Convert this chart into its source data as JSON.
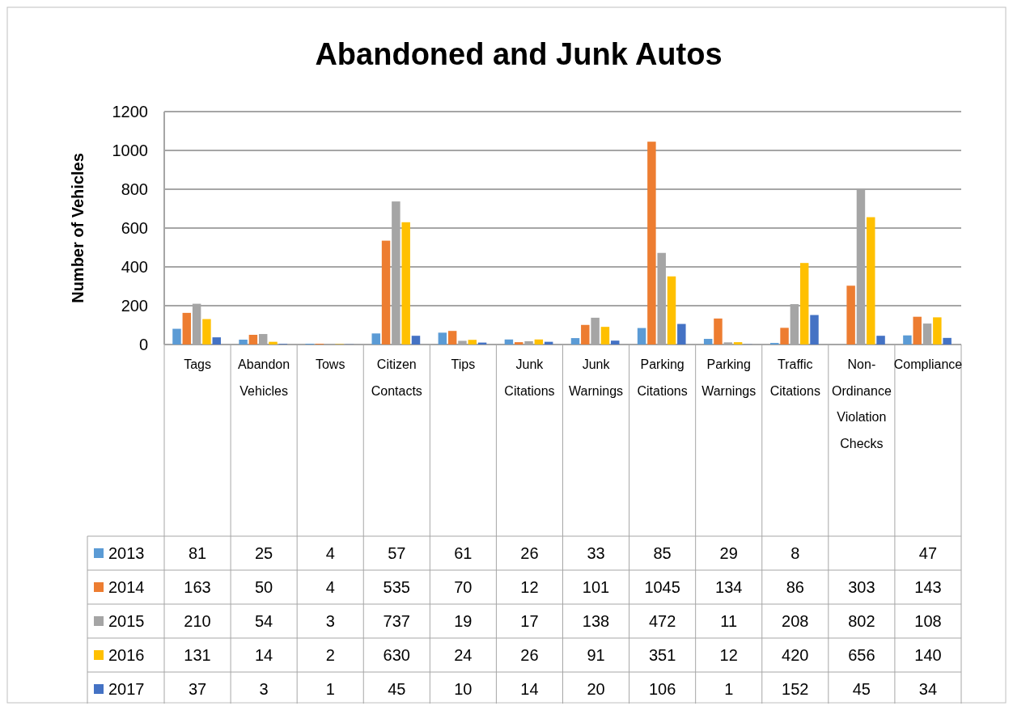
{
  "chart_data": {
    "type": "bar",
    "title": "Abandoned and Junk Autos",
    "ylabel": "Number of Vehicles",
    "categories": [
      "Tags",
      "Abandon Vehicles",
      "Tows",
      "Citizen Contacts",
      "Tips",
      "Junk Citations",
      "Junk Warnings",
      "Parking Citations",
      "Parking Warnings",
      "Traffic Citations",
      "Non-Ordinance Violation Checks",
      "Compliance"
    ],
    "series": [
      {
        "name": "2013",
        "color": "#5b9bd5",
        "values": [
          81,
          25,
          4,
          57,
          61,
          26,
          33,
          85,
          29,
          8,
          null,
          47
        ]
      },
      {
        "name": "2014",
        "color": "#ed7d31",
        "values": [
          163,
          50,
          4,
          535,
          70,
          12,
          101,
          1045,
          134,
          86,
          303,
          143
        ]
      },
      {
        "name": "2015",
        "color": "#a5a5a5",
        "values": [
          210,
          54,
          3,
          737,
          19,
          17,
          138,
          472,
          11,
          208,
          802,
          108
        ]
      },
      {
        "name": "2016",
        "color": "#ffc000",
        "values": [
          131,
          14,
          2,
          630,
          24,
          26,
          91,
          351,
          12,
          420,
          656,
          140
        ]
      },
      {
        "name": "2017",
        "color": "#4472c4",
        "values": [
          37,
          3,
          1,
          45,
          10,
          14,
          20,
          106,
          1,
          152,
          45,
          34
        ]
      }
    ],
    "ylim": [
      0,
      1200
    ],
    "yticks": [
      0,
      200,
      400,
      600,
      800,
      1000,
      1200
    ],
    "grid": "y",
    "legend": "bottom",
    "data_labels": true
  }
}
